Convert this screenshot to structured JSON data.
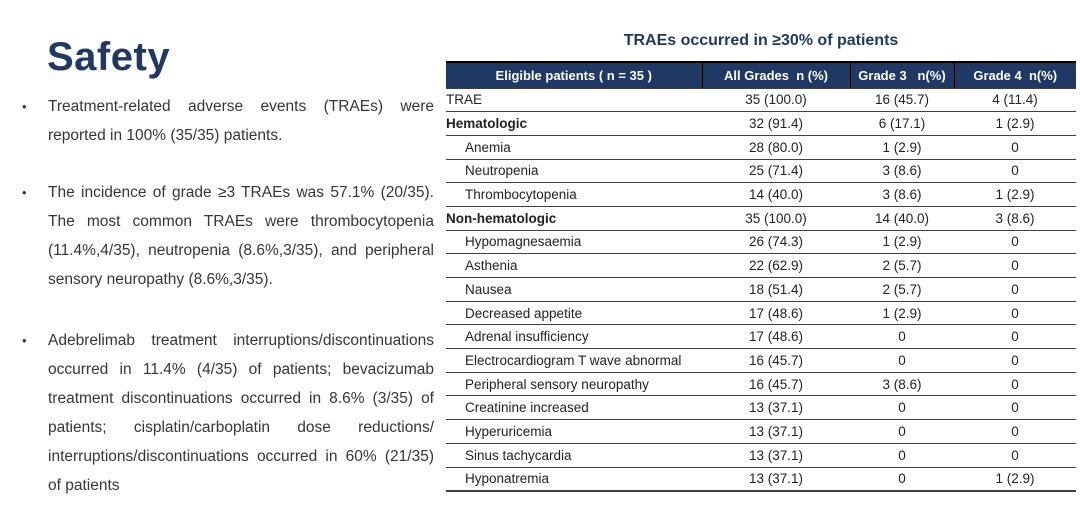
{
  "colors": {
    "navy": "#1F3864",
    "border": "#3F3F3F",
    "body_text": "#363636",
    "header_text": "#FFFFFF"
  },
  "slide": {
    "title": "Safety",
    "bullet_char": "•",
    "bullets": [
      "Treatment-related adverse events (TRAEs) were reported in 100% (35/35) patients.",
      "The incidence of grade ≥3 TRAEs was 57.1% (20/35). The most common TRAEs were thrombocytopenia (11.4%,4/35), neutropenia (8.6%,3/35), and peripheral sensory neuropathy (8.6%,3/35).",
      "Adebrelimab treatment interruptions/discontinuations occurred in 11.4% (4/35) of patients; bevacizumab treatment discontinuations occurred in 8.6% (3/35) of patients; cisplatin/carboplatin dose reductions/ interruptions/discontinuations occurred in 60% (21/35) of patients"
    ]
  },
  "table": {
    "title": "TRAEs occurred in ≥30% of patients",
    "columns": [
      "Eligible patients ( n = 35 )",
      "All Grades  n (%)",
      "Grade 3   n(%)",
      "Grade 4  n(%)"
    ],
    "rows": [
      {
        "label": "TRAE",
        "indent": false,
        "bold": false,
        "all_grades": "35 (100.0)",
        "grade3": "16 (45.7)",
        "grade4": "4 (11.4)"
      },
      {
        "label": "Hematologic",
        "indent": false,
        "bold": true,
        "all_grades": "32 (91.4)",
        "grade3": "6 (17.1)",
        "grade4": "1 (2.9)"
      },
      {
        "label": "Anemia",
        "indent": true,
        "bold": false,
        "all_grades": "28 (80.0)",
        "grade3": "1 (2.9)",
        "grade4": "0"
      },
      {
        "label": "Neutropenia",
        "indent": true,
        "bold": false,
        "all_grades": "25 (71.4)",
        "grade3": "3 (8.6)",
        "grade4": "0"
      },
      {
        "label": "Thrombocytopenia",
        "indent": true,
        "bold": false,
        "all_grades": "14 (40.0)",
        "grade3": "3 (8.6)",
        "grade4": "1 (2.9)"
      },
      {
        "label": "Non-hematologic",
        "indent": false,
        "bold": true,
        "all_grades": "35 (100.0)",
        "grade3": "14 (40.0)",
        "grade4": "3 (8.6)"
      },
      {
        "label": "Hypomagnesaemia",
        "indent": true,
        "bold": false,
        "all_grades": "26 (74.3)",
        "grade3": "1 (2.9)",
        "grade4": "0"
      },
      {
        "label": "Asthenia",
        "indent": true,
        "bold": false,
        "all_grades": "22 (62.9)",
        "grade3": "2 (5.7)",
        "grade4": "0"
      },
      {
        "label": "Nausea",
        "indent": true,
        "bold": false,
        "all_grades": "18 (51.4)",
        "grade3": "2 (5.7)",
        "grade4": "0"
      },
      {
        "label": "Decreased appetite",
        "indent": true,
        "bold": false,
        "all_grades": "17 (48.6)",
        "grade3": "1 (2.9)",
        "grade4": "0"
      },
      {
        "label": "Adrenal insufficiency",
        "indent": true,
        "bold": false,
        "all_grades": "17 (48.6)",
        "grade3": "0",
        "grade4": "0"
      },
      {
        "label": "Electrocardiogram T wave abnormal",
        "indent": true,
        "bold": false,
        "all_grades": "16 (45.7)",
        "grade3": "0",
        "grade4": "0"
      },
      {
        "label": "Peripheral sensory neuropathy",
        "indent": true,
        "bold": false,
        "all_grades": "16 (45.7)",
        "grade3": "3 (8.6)",
        "grade4": "0"
      },
      {
        "label": "Creatinine increased",
        "indent": true,
        "bold": false,
        "all_grades": "13 (37.1)",
        "grade3": "0",
        "grade4": "0"
      },
      {
        "label": "Hyperuricemia",
        "indent": true,
        "bold": false,
        "all_grades": "13 (37.1)",
        "grade3": "0",
        "grade4": "0"
      },
      {
        "label": "Sinus tachycardia",
        "indent": true,
        "bold": false,
        "all_grades": "13 (37.1)",
        "grade3": "0",
        "grade4": "0"
      },
      {
        "label": "Hyponatremia",
        "indent": true,
        "bold": false,
        "all_grades": "13 (37.1)",
        "grade3": "0",
        "grade4": "1 (2.9)"
      }
    ]
  }
}
